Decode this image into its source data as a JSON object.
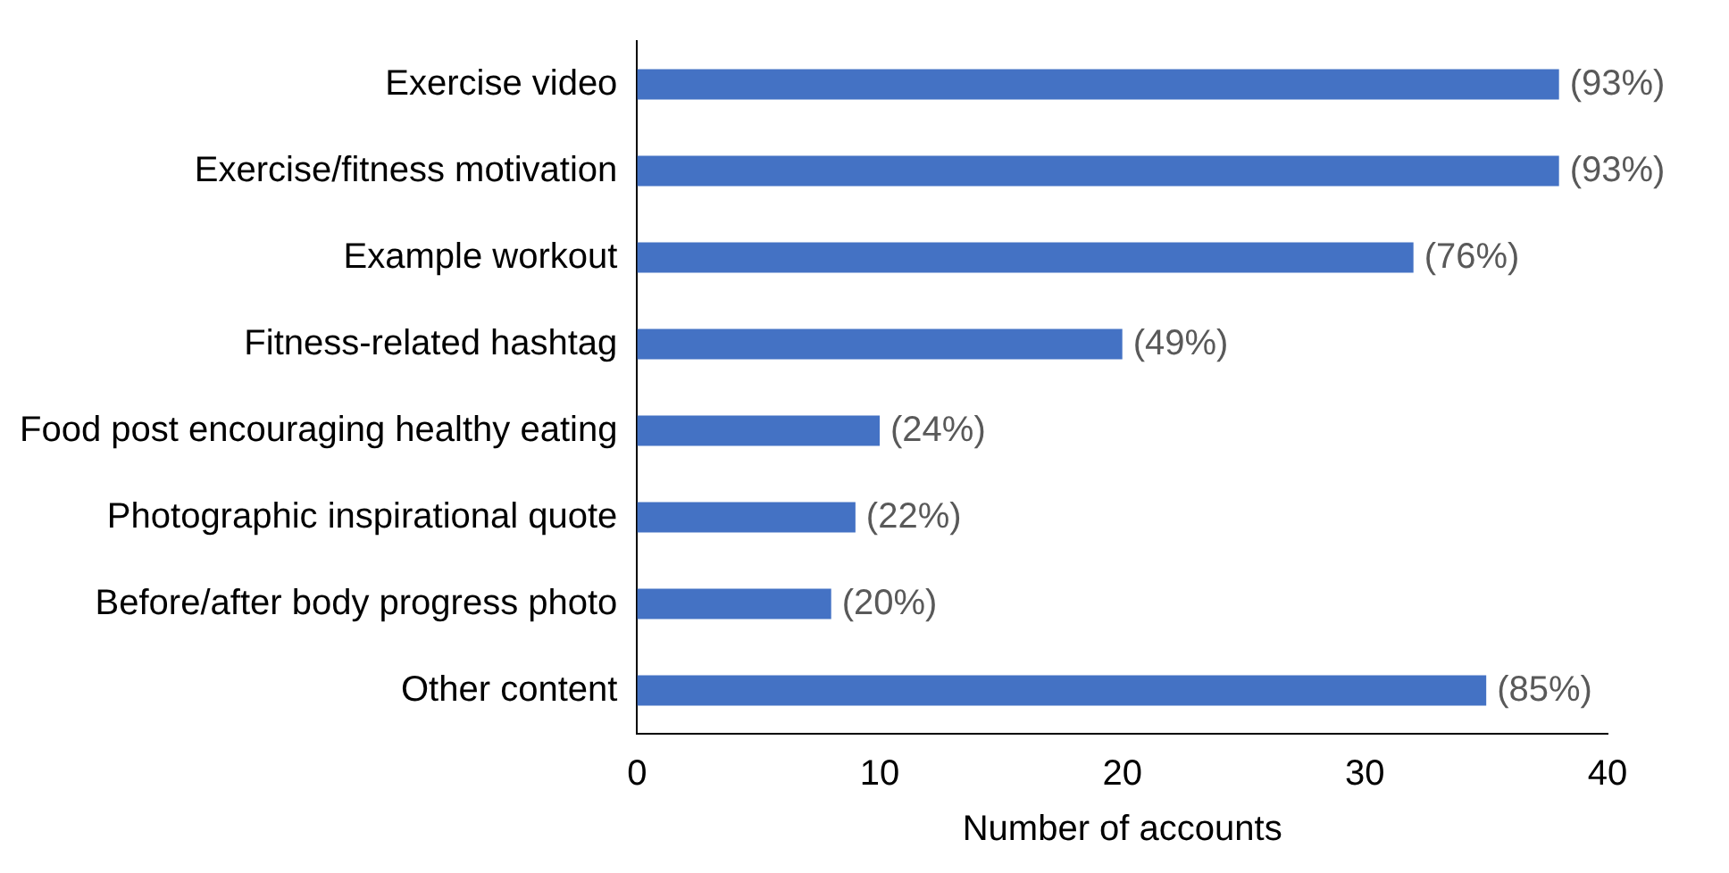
{
  "chart_data": {
    "type": "bar",
    "orientation": "horizontal",
    "xlabel": "Number of accounts",
    "categories": [
      "Exercise video",
      "Exercise/fitness motivation",
      "Example workout",
      "Fitness-related hashtag",
      "Food post encouraging healthy eating",
      "Photographic inspirational quote",
      "Before/after body progress photo",
      "Other content"
    ],
    "values": [
      38,
      38,
      32,
      20,
      10,
      9,
      8,
      35
    ],
    "annotations": [
      {
        "text": "(93%)",
        "x": 38,
        "y": "Exercise video"
      },
      {
        "text": "(93%)",
        "x": 38,
        "y": "Exercise/fitness motivation"
      },
      {
        "text": "(76%)",
        "x": 32,
        "y": "Example workout"
      },
      {
        "text": "(49%)",
        "x": 20,
        "y": "Fitness-related hashtag"
      },
      {
        "text": "(24%)",
        "x": 10,
        "y": "Food post encouraging healthy eating"
      },
      {
        "text": "(22%)",
        "x": 9,
        "y": "Photographic inspirational quote"
      },
      {
        "text": "(20%)",
        "x": 8,
        "y": "Before/after body progress photo"
      },
      {
        "text": "(85%)",
        "x": 35,
        "y": "Other content"
      }
    ],
    "color": "#4472c4",
    "xlim": [
      0,
      40
    ],
    "xticks": [
      0,
      10,
      20,
      30,
      40
    ],
    "grid": false,
    "legend": false
  }
}
